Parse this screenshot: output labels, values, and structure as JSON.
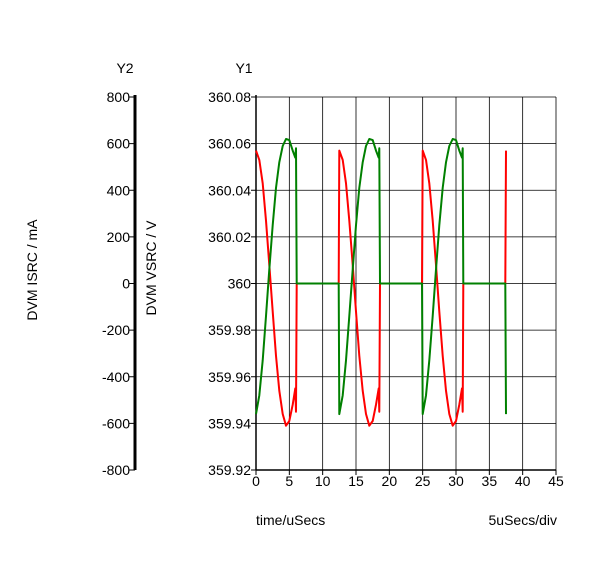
{
  "chart_data": {
    "type": "line",
    "axis_headers": {
      "y2": "Y2",
      "y1": "Y1"
    },
    "xlabel": "time/uSecs",
    "x_scale_note": "5uSecs/div",
    "y1label": "DVM VSRC / V",
    "y2label": "DVM ISRC / mA",
    "xlim": [
      0,
      45
    ],
    "x_ticks": [
      "0",
      "5",
      "10",
      "15",
      "20",
      "25",
      "30",
      "35",
      "40",
      "45"
    ],
    "y1lim": [
      359.92,
      360.08
    ],
    "y1_ticks": [
      "359.92",
      "359.94",
      "359.96",
      "359.98",
      "360",
      "360.02",
      "360.04",
      "360.06",
      "360.08"
    ],
    "y2lim": [
      -800,
      800
    ],
    "y2_ticks": [
      "-800",
      "-600",
      "-400",
      "-200",
      "0",
      "200",
      "400",
      "600",
      "800"
    ],
    "grid": true,
    "series": [
      {
        "axis": "y1",
        "color": "#ff0000",
        "points": [
          [
            0.0,
            360.057
          ],
          [
            0.5,
            360.053
          ],
          [
            1.0,
            360.043
          ],
          [
            1.5,
            360.027
          ],
          [
            2.0,
            360.008
          ],
          [
            2.5,
            359.988
          ],
          [
            3.0,
            359.969
          ],
          [
            3.5,
            359.954
          ],
          [
            4.0,
            359.944
          ],
          [
            4.5,
            359.939
          ],
          [
            5.0,
            359.941
          ],
          [
            5.5,
            359.948
          ],
          [
            5.9,
            359.955
          ],
          [
            6.0,
            359.945
          ],
          [
            6.1,
            360.0
          ],
          [
            12.4,
            360.0
          ],
          [
            12.5,
            360.057
          ],
          [
            13.0,
            360.053
          ],
          [
            13.5,
            360.043
          ],
          [
            14.0,
            360.027
          ],
          [
            14.5,
            360.008
          ],
          [
            15.0,
            359.988
          ],
          [
            15.5,
            359.969
          ],
          [
            16.0,
            359.954
          ],
          [
            16.5,
            359.944
          ],
          [
            17.0,
            359.939
          ],
          [
            17.5,
            359.941
          ],
          [
            18.0,
            359.948
          ],
          [
            18.4,
            359.955
          ],
          [
            18.5,
            359.945
          ],
          [
            18.6,
            360.0
          ],
          [
            24.9,
            360.0
          ],
          [
            25.0,
            360.057
          ],
          [
            25.5,
            360.053
          ],
          [
            26.0,
            360.043
          ],
          [
            26.5,
            360.027
          ],
          [
            27.0,
            360.008
          ],
          [
            27.5,
            359.988
          ],
          [
            28.0,
            359.969
          ],
          [
            28.5,
            359.954
          ],
          [
            29.0,
            359.944
          ],
          [
            29.5,
            359.939
          ],
          [
            30.0,
            359.941
          ],
          [
            30.5,
            359.948
          ],
          [
            30.9,
            359.955
          ],
          [
            31.0,
            359.945
          ],
          [
            31.1,
            360.0
          ],
          [
            37.4,
            360.0
          ],
          [
            37.5,
            360.057
          ]
        ]
      },
      {
        "axis": "y2",
        "color": "#008000",
        "points": [
          [
            0.0,
            -560
          ],
          [
            0.5,
            -480
          ],
          [
            1.0,
            -330
          ],
          [
            1.5,
            -140
          ],
          [
            2.0,
            60
          ],
          [
            2.5,
            250
          ],
          [
            3.0,
            410
          ],
          [
            3.5,
            520
          ],
          [
            4.0,
            590
          ],
          [
            4.5,
            620
          ],
          [
            5.0,
            615
          ],
          [
            5.5,
            570
          ],
          [
            5.9,
            540
          ],
          [
            6.0,
            580
          ],
          [
            6.1,
            0
          ],
          [
            12.4,
            0
          ],
          [
            12.5,
            -560
          ],
          [
            13.0,
            -480
          ],
          [
            13.5,
            -330
          ],
          [
            14.0,
            -140
          ],
          [
            14.5,
            60
          ],
          [
            15.0,
            250
          ],
          [
            15.5,
            410
          ],
          [
            16.0,
            520
          ],
          [
            16.5,
            590
          ],
          [
            17.0,
            620
          ],
          [
            17.5,
            615
          ],
          [
            18.0,
            570
          ],
          [
            18.4,
            540
          ],
          [
            18.5,
            580
          ],
          [
            18.6,
            0
          ],
          [
            24.9,
            0
          ],
          [
            25.0,
            -560
          ],
          [
            25.5,
            -480
          ],
          [
            26.0,
            -330
          ],
          [
            26.5,
            -140
          ],
          [
            27.0,
            60
          ],
          [
            27.5,
            250
          ],
          [
            28.0,
            410
          ],
          [
            28.5,
            520
          ],
          [
            29.0,
            590
          ],
          [
            29.5,
            620
          ],
          [
            30.0,
            615
          ],
          [
            30.5,
            570
          ],
          [
            30.9,
            540
          ],
          [
            31.0,
            580
          ],
          [
            31.1,
            0
          ],
          [
            37.4,
            0
          ],
          [
            37.5,
            -560
          ]
        ]
      }
    ]
  }
}
